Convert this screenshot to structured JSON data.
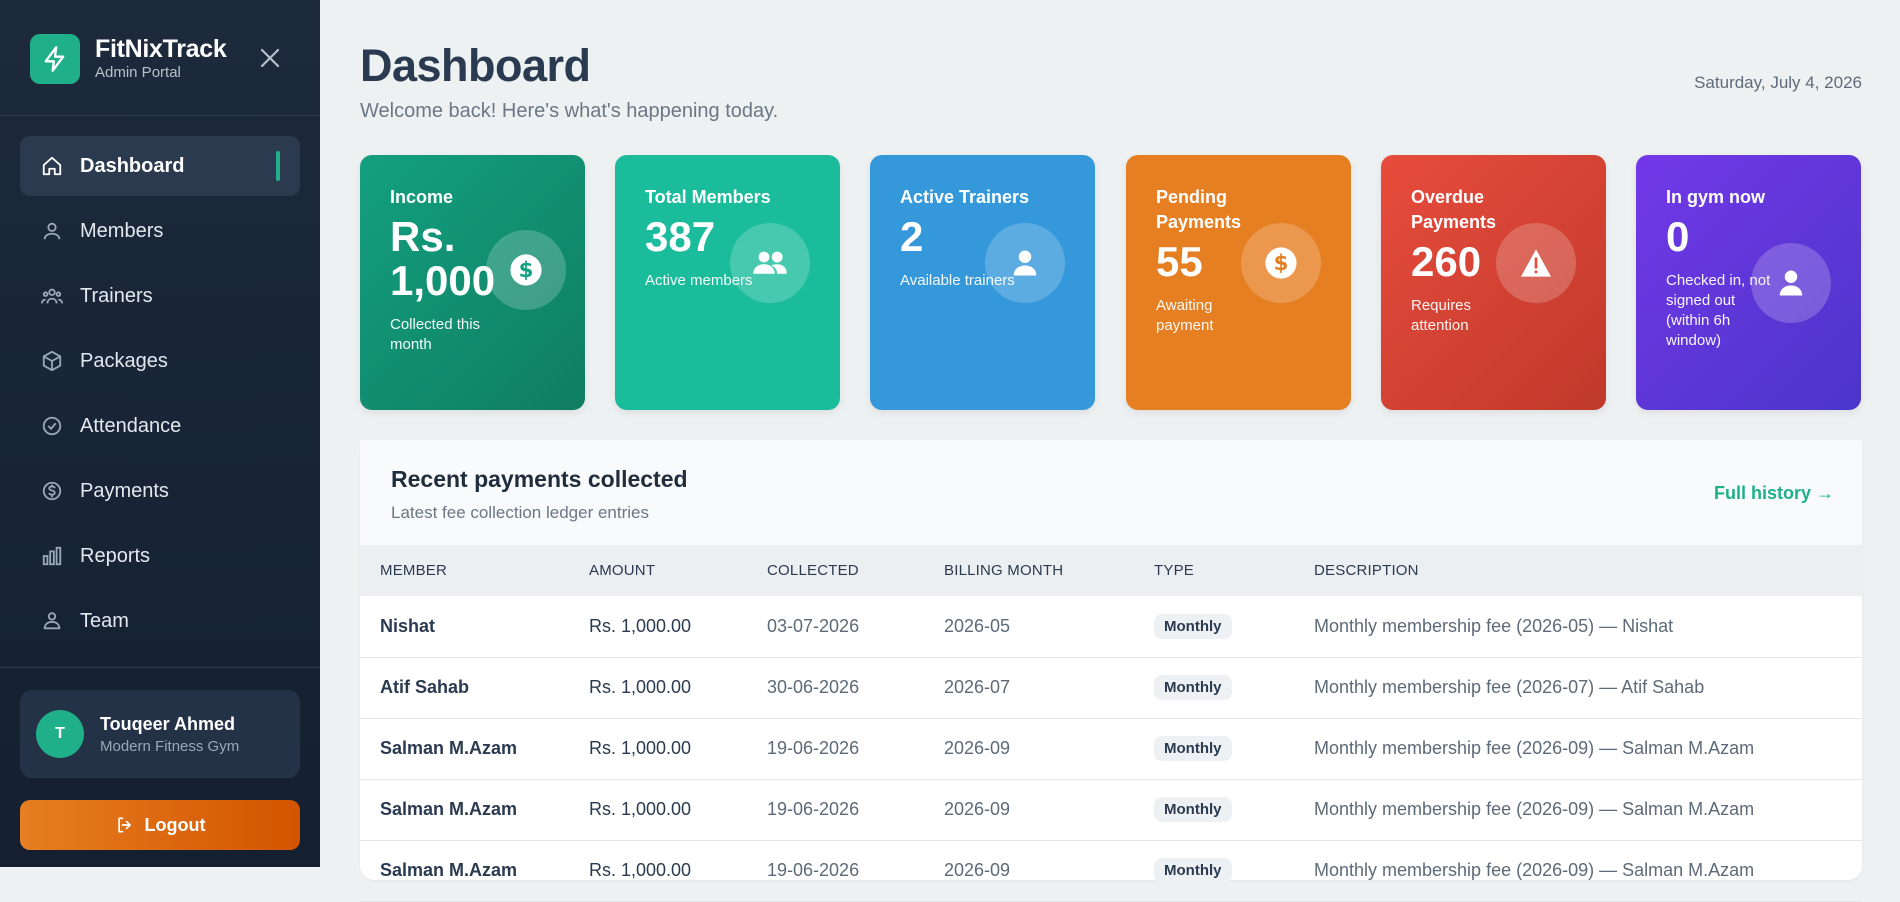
{
  "brand": {
    "name": "FitNixTrack",
    "subtitle": "Admin Portal",
    "logo_icon": "bolt-icon",
    "accent": "#1fb08a"
  },
  "sidebar": {
    "items": [
      {
        "label": "Dashboard",
        "icon": "home-icon",
        "active": true
      },
      {
        "label": "Members",
        "icon": "users-icon"
      },
      {
        "label": "Trainers",
        "icon": "group-icon"
      },
      {
        "label": "Packages",
        "icon": "box-icon"
      },
      {
        "label": "Attendance",
        "icon": "check-circle-icon"
      },
      {
        "label": "Payments",
        "icon": "dollar-circle-icon"
      },
      {
        "label": "Reports",
        "icon": "bar-chart-icon"
      },
      {
        "label": "Team",
        "icon": "team-icon"
      }
    ],
    "user": {
      "initial": "T",
      "name": "Touqeer Ahmed",
      "org": "Modern Fitness Gym"
    },
    "logout_label": "Logout"
  },
  "header": {
    "title": "Dashboard",
    "subtitle": "Welcome back! Here's what's happening today.",
    "date": "Saturday, July 4, 2026"
  },
  "cards": [
    {
      "label": "Income",
      "value": "Rs. 1,000",
      "note": "Collected this month",
      "icon": "dollar-icon",
      "color": "#15a07e"
    },
    {
      "label": "Total Members",
      "value": "387",
      "note": "Active members",
      "icon": "users-icon",
      "color": "#1abc9c"
    },
    {
      "label": "Active Trainers",
      "value": "2",
      "note": "Available trainers",
      "icon": "user-icon",
      "color": "#3498db"
    },
    {
      "label": "Pending Payments",
      "value": "55",
      "note": "Awaiting payment",
      "icon": "dollar-icon",
      "color": "#e67e22"
    },
    {
      "label": "Overdue Payments",
      "value": "260",
      "note": "Requires attention",
      "icon": "warning-icon",
      "color": "#e74c3c"
    },
    {
      "label": "In gym now",
      "value": "0",
      "note": "Checked in, not signed out (within 6h window)",
      "icon": "user-icon",
      "color": "#6c3ce0"
    }
  ],
  "payments": {
    "title": "Recent payments collected",
    "subtitle": "Latest fee collection ledger entries",
    "link": "Full history →",
    "columns": [
      "MEMBER",
      "AMOUNT",
      "COLLECTED",
      "BILLING MONTH",
      "TYPE",
      "DESCRIPTION"
    ],
    "rows": [
      {
        "member": "Nishat",
        "amount": "Rs. 1,000.00",
        "collected": "03-07-2026",
        "month": "2026-05",
        "type": "Monthly",
        "description": "Monthly membership fee (2026-05) — Nishat"
      },
      {
        "member": "Atif Sahab",
        "amount": "Rs. 1,000.00",
        "collected": "30-06-2026",
        "month": "2026-07",
        "type": "Monthly",
        "description": "Monthly membership fee (2026-07) — Atif Sahab"
      },
      {
        "member": "Salman M.Azam",
        "amount": "Rs. 1,000.00",
        "collected": "19-06-2026",
        "month": "2026-09",
        "type": "Monthly",
        "description": "Monthly membership fee (2026-09) — Salman M.Azam"
      },
      {
        "member": "Salman M.Azam",
        "amount": "Rs. 1,000.00",
        "collected": "19-06-2026",
        "month": "2026-09",
        "type": "Monthly",
        "description": "Monthly membership fee (2026-09) — Salman M.Azam"
      },
      {
        "member": "Salman M.Azam",
        "amount": "Rs. 1,000.00",
        "collected": "19-06-2026",
        "month": "2026-09",
        "type": "Monthly",
        "description": "Monthly membership fee (2026-09) — Salman M.Azam"
      }
    ]
  }
}
